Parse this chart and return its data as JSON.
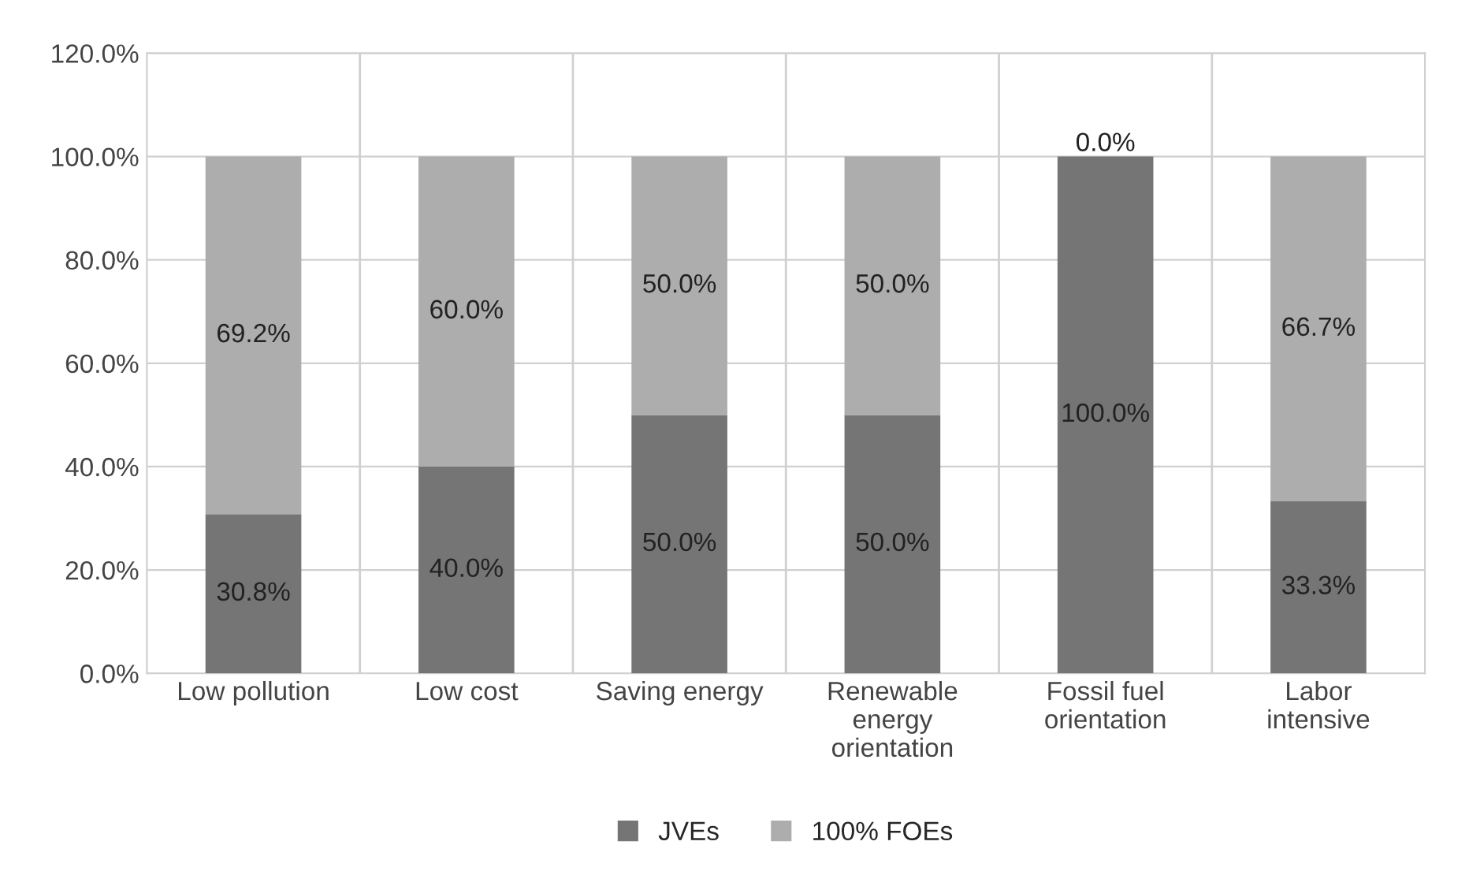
{
  "chart_data": {
    "type": "bar",
    "stacked": true,
    "categories": [
      "Low pollution",
      "Low cost",
      "Saving energy",
      "Renewable\nenergy\norientation",
      "Fossil fuel\norientation",
      "Labor\nintensive"
    ],
    "series": [
      {
        "name": "JVEs",
        "color": "#757575",
        "values": [
          30.8,
          40.0,
          50.0,
          50.0,
          100.0,
          33.3
        ],
        "value_labels": [
          "30.8%",
          "40.0%",
          "50.0%",
          "50.0%",
          "100.0%",
          "33.3%"
        ]
      },
      {
        "name": "100% FOEs",
        "color": "#adadad",
        "values": [
          69.2,
          60.0,
          50.0,
          50.0,
          0.0,
          66.7
        ],
        "value_labels": [
          "69.2%",
          "60.0%",
          "50.0%",
          "50.0%",
          "0.0%",
          "66.7%"
        ]
      }
    ],
    "ylim": [
      0,
      120
    ],
    "yticks": [
      {
        "value": 0,
        "label": "0.0%"
      },
      {
        "value": 20,
        "label": "20.0%"
      },
      {
        "value": 40,
        "label": "40.0%"
      },
      {
        "value": 60,
        "label": "60.0%"
      },
      {
        "value": 80,
        "label": "80.0%"
      },
      {
        "value": 100,
        "label": "100.0%"
      },
      {
        "value": 120,
        "label": "120.0%"
      }
    ],
    "grid": true,
    "legend": "bottom"
  }
}
